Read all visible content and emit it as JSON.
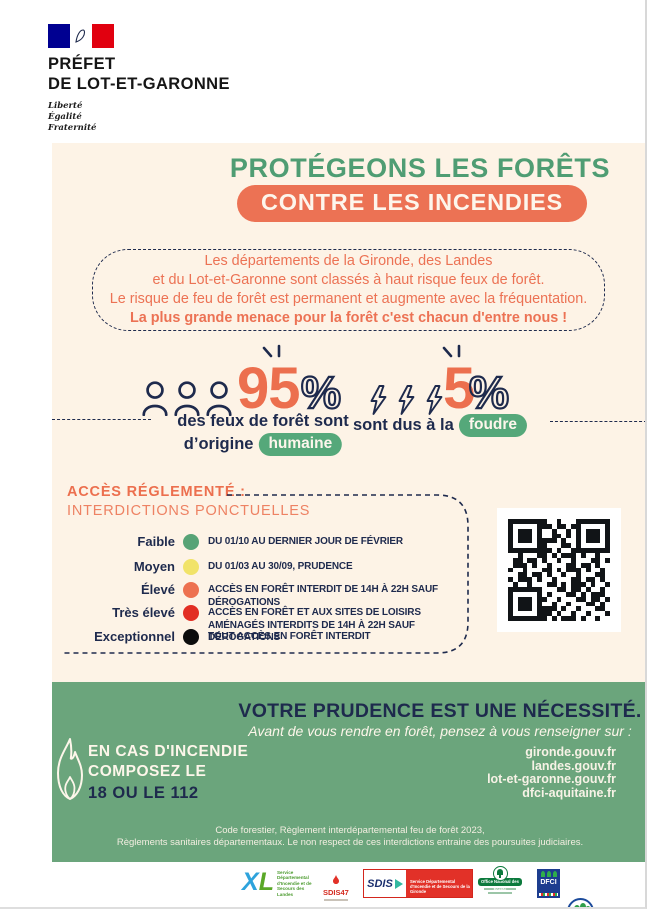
{
  "brand": {
    "name_line1": "PRÉFET",
    "name_line2": "DE LOT-ET-GARONNE",
    "motto_line1": "Liberté",
    "motto_line2": "Égalité",
    "motto_line3": "Fraternité"
  },
  "title": {
    "line1": "PROTÉGEONS LES FORÊTS",
    "line2": "CONTRE LES INCENDIES"
  },
  "intro": {
    "line1": "Les départements de la Gironde, des Landes",
    "line2": "et du Lot-et-Garonne sont classés à haut risque feux de forêt.",
    "line3": "Le risque de feu de forêt est permanent et augmente avec la fréquentation.",
    "line4": "La plus grande menace pour la forêt c'est chacun d'entre nous !"
  },
  "stats": {
    "human": {
      "value": "95",
      "unit": "%",
      "caption_line1": "des feux de forêt sont",
      "caption_line2": "d’origine",
      "highlight": "humaine"
    },
    "lightning": {
      "value": "5",
      "unit": "%",
      "caption": "sont dus à la",
      "highlight": "foudre"
    }
  },
  "access": {
    "title": "ACCÈS RÉGLEMENTÉ :",
    "subtitle": "INTERDICTIONS PONCTUELLES",
    "levels": [
      {
        "label": "Faible",
        "color": "#57a376",
        "description": "DU 01/10 AU DERNIER JOUR DE FÉVRIER"
      },
      {
        "label": "Moyen",
        "color": "#f1e369",
        "description": "DU 01/03 AU 30/09, PRUDENCE"
      },
      {
        "label": "Élevé",
        "color": "#ed7150",
        "description": "ACCÈS EN FORÊT INTERDIT DE 14H À 22H SAUF DÉROGATIONS"
      },
      {
        "label": "Très élevé",
        "color": "#e22e23",
        "description": "ACCÈS EN FORÊT ET AUX SITES DE LOISIRS AMÉNAGÉS INTERDITS DE 14H À 22H SAUF DÉROGATIONS"
      },
      {
        "label": "Exceptionnel",
        "color": "#0c0c0c",
        "description": "TOUT ACCÈS EN FORÊT INTERDIT"
      }
    ]
  },
  "footer": {
    "headline": "VOTRE PRUDENCE EST UNE NÉCESSITÉ.",
    "subline": "Avant de vous rendre en forêt, pensez à vous renseigner sur :",
    "emergency_line1": "EN CAS D'INCENDIE",
    "emergency_line2": "COMPOSEZ LE",
    "emergency_numbers": "18 OU LE 112",
    "websites": [
      "gironde.gouv.fr",
      "landes.gouv.fr",
      "lot-et-garonne.gouv.fr",
      "dfci-aquitaine.fr"
    ],
    "legal_line1": "Code forestier, Règlement interdépartemental feu de forêt 2023,",
    "legal_line2": "Règlements sanitaires départementaux. Le non respect de ces interdictions entraine des poursuites judiciaires."
  },
  "partners": {
    "sdis_landes_caption": "Service Départemental d'Incendie et de Secours des Landes",
    "sdis47_label": "SDIS47",
    "sdis_gironde_label": "SDIS",
    "sdis_gironde_caption": "Service Départemental d'Incendie et de Secours de la Gironde",
    "onf_label": "Office National des Forêts",
    "dfci_label": "DFCI"
  },
  "colors": {
    "cream": "#fdf3e6",
    "orange": "#ec7254",
    "title_green": "#4f9d73",
    "pill_green": "#55a87a",
    "footer_green": "#6ba57c",
    "navy": "#1e2a4d",
    "flag_blue": "#000091",
    "flag_red": "#e1000f"
  }
}
